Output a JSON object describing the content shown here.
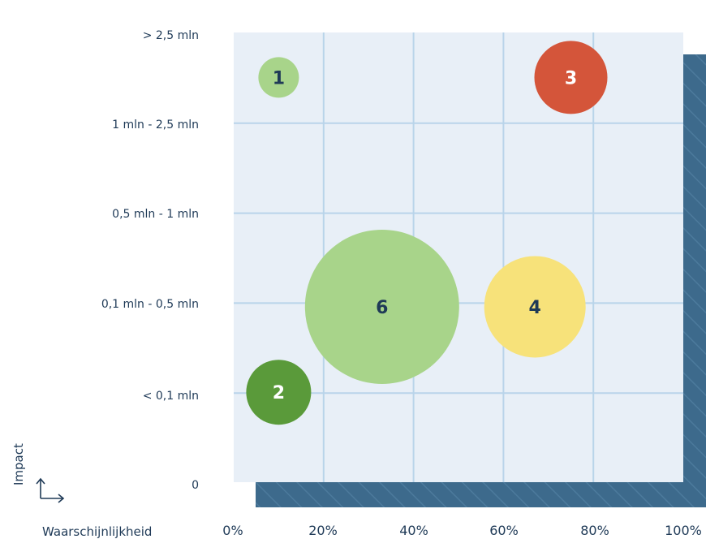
{
  "chart_data": {
    "type": "scatter",
    "title": "",
    "xlabel": "Waarschijnlijkheid",
    "ylabel": "Impact",
    "x_ticks": [
      "0%",
      "20%",
      "40%",
      "60%",
      "80%",
      "100%"
    ],
    "y_ticks": [
      "0",
      "< 0,1 mln",
      "0,1 mln - 0,5 mln",
      "0,5 mln - 1 mln",
      "1 mln - 2,5 mln",
      "> 2,5 mln"
    ],
    "xlim": [
      0,
      100
    ],
    "ylim": [
      0,
      5
    ],
    "grid": true,
    "points": [
      {
        "label": "1",
        "x": 10,
        "y": 4.5,
        "size": 1,
        "color": "#a8d48a",
        "text_color": "#1f3a57"
      },
      {
        "label": "2",
        "x": 10,
        "y": 1.0,
        "size": 1.6,
        "color": "#5a9a3a",
        "text_color": "#ffffff"
      },
      {
        "label": "3",
        "x": 75,
        "y": 4.5,
        "size": 1.8,
        "color": "#d4553a",
        "text_color": "#ffffff"
      },
      {
        "label": "4",
        "x": 67,
        "y": 1.95,
        "size": 2.5,
        "color": "#f7e27a",
        "text_color": "#1f3a57"
      },
      {
        "label": "6",
        "x": 33,
        "y": 1.95,
        "size": 3.8,
        "color": "#a8d48a",
        "text_color": "#1f3a57"
      }
    ]
  }
}
